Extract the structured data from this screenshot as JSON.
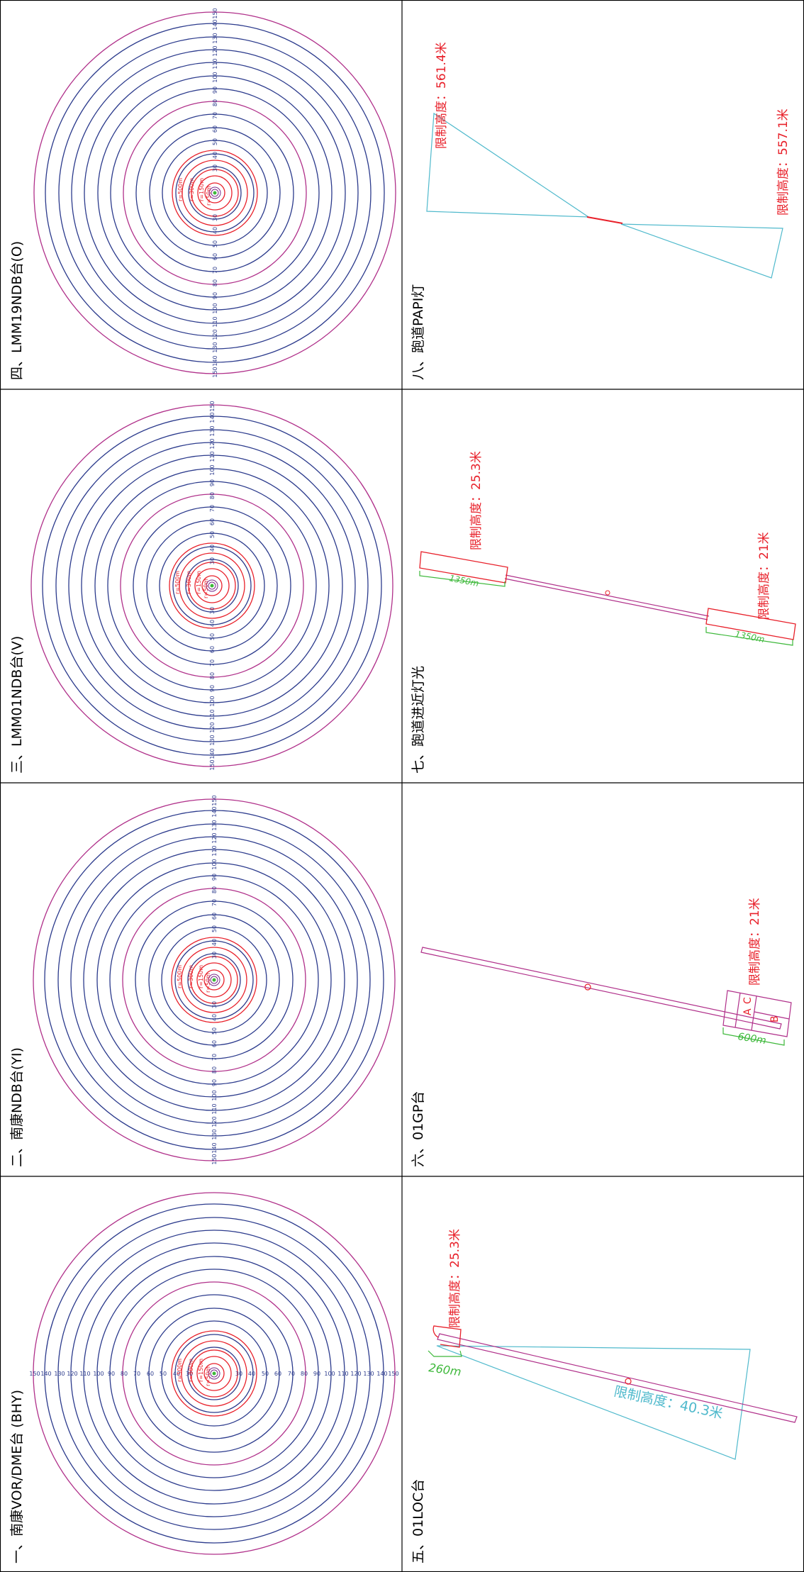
{
  "panels": {
    "p1": {
      "title": "一、南康VOR/DME台 (BHY)"
    },
    "p2": {
      "title": "二、南康NDB台(YI)"
    },
    "p3": {
      "title": "三、LMM01NDB台(V)"
    },
    "p4": {
      "title": "四、LMM19NDB台(O)"
    },
    "p5": {
      "title": "五、01LOC台",
      "limit_top": "限制高度：25.3米",
      "limit_side": "限制高度：40.3米",
      "dim": "260m"
    },
    "p6": {
      "title": "六、01GP台",
      "limit": "限制高度：21米",
      "dim": "600m",
      "label_a": "A",
      "label_b": "B",
      "label_c": "C"
    },
    "p7": {
      "title": "七、跑道进近灯光",
      "limit_top": "限制高度：25.3米",
      "limit_bottom": "限制高度：21米",
      "dim_top": "1350m",
      "dim_bottom": "1350m"
    },
    "p8": {
      "title": "八、跑道PAPI灯",
      "limit_top": "限制高度：561.4米",
      "limit_bottom": "限制高度：557.1米"
    }
  },
  "ring_labels": [
    "30",
    "40",
    "50",
    "60",
    "70",
    "80",
    "90",
    "100",
    "110",
    "120",
    "130",
    "140",
    "150"
  ],
  "r_labels": [
    "r=500m",
    "r=300m",
    "r=150m",
    "r=50m"
  ],
  "colors": {
    "ring": "#2b3a8c",
    "outer": "#b0308a",
    "red": "#e8202a",
    "cyan": "#4fb9cc",
    "green": "#3db83a"
  }
}
